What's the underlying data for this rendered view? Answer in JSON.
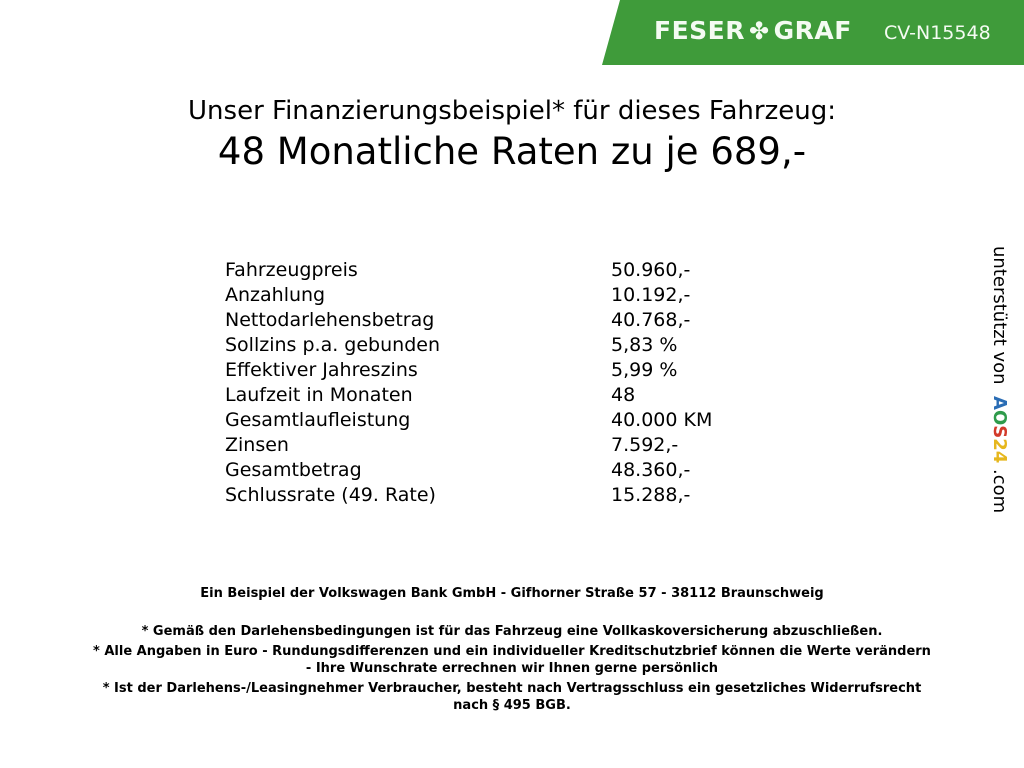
{
  "header": {
    "brand_left": "FESER",
    "brand_right": "GRAF",
    "brand_icon": "clover-icon",
    "vehicle_code": "CV-N15548",
    "brand_color": "#3f9b3a"
  },
  "title": {
    "line1": "Unser Finanzierungsbeispiel* für dieses Fahrzeug:",
    "line2": "48 Monatliche Raten zu je 689,-"
  },
  "rows": [
    {
      "label": "Fahrzeugpreis",
      "value": "50.960,-"
    },
    {
      "label": "Anzahlung",
      "value": "10.192,-"
    },
    {
      "label": "Nettodarlehensbetrag",
      "value": "40.768,-"
    },
    {
      "label": "Sollzins p.a. gebunden",
      "value": "5,83 %"
    },
    {
      "label": "Effektiver Jahreszins",
      "value": "5,99 %"
    },
    {
      "label": "Laufzeit in Monaten",
      "value": "48"
    },
    {
      "label": "Gesamtlaufleistung",
      "value": "40.000 KM"
    },
    {
      "label": "Zinsen",
      "value": "7.592,-"
    },
    {
      "label": "Gesamtbetrag",
      "value": "48.360,-"
    },
    {
      "label": "Schlussrate (49. Rate)",
      "value": "15.288,-"
    }
  ],
  "side": {
    "text": "unterstützt von",
    "logo": "AOS24",
    ".com": ".com"
  },
  "footer": {
    "bank": "Ein Beispiel der Volkswagen Bank GmbH - Gifhorner Straße 57 - 38112 Braunschweig",
    "note1": "* Gemäß den Darlehensbedingungen ist für das Fahrzeug eine Vollkaskoversicherung abzuschließen.",
    "note2a": "* Alle Angaben in Euro - Rundungsdifferenzen und ein individueller Kreditschutzbrief können die Werte verändern",
    "note2b": "- Ihre Wunschrate errechnen wir Ihnen gerne persönlich",
    "note3a": "* Ist der Darlehens-/Leasingnehmer Verbraucher, besteht nach Vertragsschluss ein gesetzliches Widerrufsrecht",
    "note3b": "nach § 495 BGB."
  }
}
